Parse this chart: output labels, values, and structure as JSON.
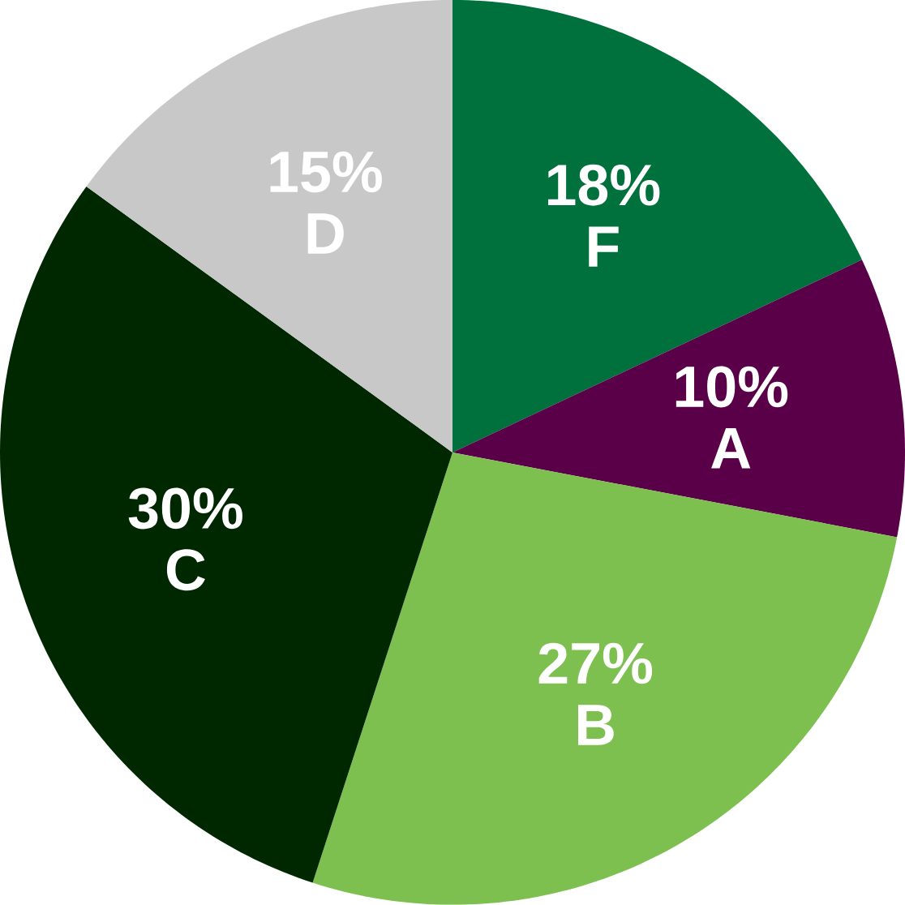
{
  "chart_data": {
    "type": "pie",
    "categories": [
      "F",
      "A",
      "B",
      "C",
      "D"
    ],
    "values": [
      18,
      10,
      27,
      30,
      15
    ],
    "value_labels": [
      "18%",
      "10%",
      "27%",
      "30%",
      "15%"
    ],
    "colors": [
      "#00703c",
      "#5a0048",
      "#7dc050",
      "#002800",
      "#c8c8c8"
    ]
  }
}
